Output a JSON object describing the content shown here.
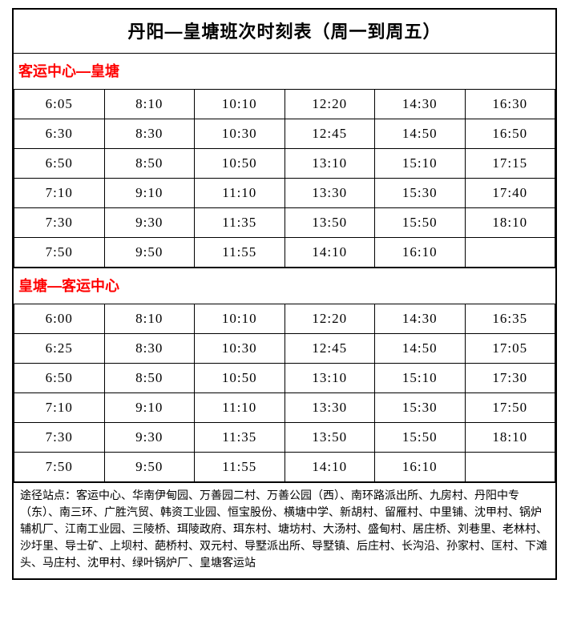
{
  "title": "丹阳—皇塘班次时刻表（周一到周五）",
  "section1": {
    "header": "客运中心—皇塘",
    "rows": [
      [
        "6:05",
        "8:10",
        "10:10",
        "12:20",
        "14:30",
        "16:30"
      ],
      [
        "6:30",
        "8:30",
        "10:30",
        "12:45",
        "14:50",
        "16:50"
      ],
      [
        "6:50",
        "8:50",
        "10:50",
        "13:10",
        "15:10",
        "17:15"
      ],
      [
        "7:10",
        "9:10",
        "11:10",
        "13:30",
        "15:30",
        "17:40"
      ],
      [
        "7:30",
        "9:30",
        "11:35",
        "13:50",
        "15:50",
        "18:10"
      ],
      [
        "7:50",
        "9:50",
        "11:55",
        "14:10",
        "16:10",
        ""
      ]
    ]
  },
  "section2": {
    "header": "皇塘—客运中心",
    "rows": [
      [
        "6:00",
        "8:10",
        "10:10",
        "12:20",
        "14:30",
        "16:35"
      ],
      [
        "6:25",
        "8:30",
        "10:30",
        "12:45",
        "14:50",
        "17:05"
      ],
      [
        "6:50",
        "8:50",
        "10:50",
        "13:10",
        "15:10",
        "17:30"
      ],
      [
        "7:10",
        "9:10",
        "11:10",
        "13:30",
        "15:30",
        "17:50"
      ],
      [
        "7:30",
        "9:30",
        "11:35",
        "13:50",
        "15:50",
        "18:10"
      ],
      [
        "7:50",
        "9:50",
        "11:55",
        "14:10",
        "16:10",
        ""
      ]
    ]
  },
  "notes": "途径站点：客运中心、华南伊甸园、万善园二村、万善公园（西）、南环路派出所、九房村、丹阳中专（东）、南三环、广胜汽贸、韩资工业园、恒宝股份、横塘中学、新胡村、留雁村、中里铺、沈甲村、锅炉辅机厂、江南工业园、三陵桥、珥陵政府、珥东村、塘坊村、大汤村、盛甸村、居庄桥、刘巷里、老林村、沙圩里、导士矿、上坝村、葩桥村、双元村、导墅派出所、导墅镇、后庄村、长沟沿、孙家村、匡村、下滩头、马庄村、沈甲村、绿叶锅炉厂、皇塘客运站",
  "colors": {
    "border": "#000000",
    "header_text": "#ff0000",
    "background": "#ffffff",
    "text": "#000000"
  },
  "layout": {
    "columns": 6,
    "cell_fontsize": 17,
    "title_fontsize": 22,
    "header_fontsize": 18,
    "notes_fontsize": 14
  }
}
